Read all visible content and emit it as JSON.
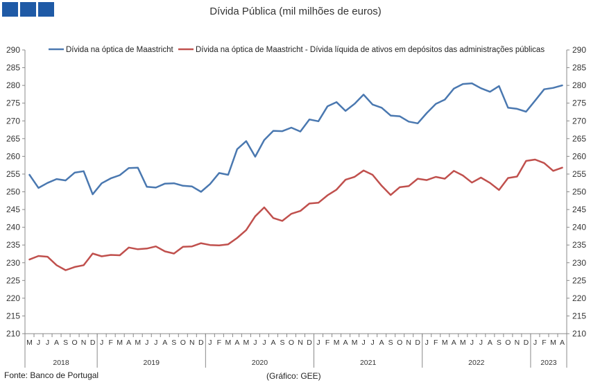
{
  "title": "Dívida Pública (mil milhões de euros)",
  "source": "Fonte: Banco de Portugal",
  "credit": "(Gráfico: GEE)",
  "chart_data": {
    "type": "line",
    "ylim": [
      210,
      290
    ],
    "yticks": [
      210,
      215,
      220,
      225,
      230,
      235,
      240,
      245,
      250,
      255,
      260,
      265,
      270,
      275,
      280,
      285,
      290
    ],
    "grid": false,
    "legend_position": "top",
    "month_labels": [
      "M",
      "J",
      "J",
      "A",
      "S",
      "O",
      "N",
      "D",
      "J",
      "F",
      "M",
      "A",
      "M",
      "J",
      "J",
      "A",
      "S",
      "O",
      "N",
      "D",
      "J",
      "F",
      "M",
      "A",
      "M",
      "J",
      "J",
      "A",
      "S",
      "O",
      "N",
      "D",
      "J",
      "F",
      "M",
      "A",
      "M",
      "J",
      "J",
      "A",
      "S",
      "O",
      "N",
      "D",
      "J",
      "F",
      "M",
      "A",
      "M",
      "J",
      "J",
      "A",
      "S",
      "O",
      "N",
      "D",
      "J",
      "F",
      "M",
      "A"
    ],
    "years": [
      {
        "label": "2018",
        "start": 0,
        "count": 8
      },
      {
        "label": "2019",
        "start": 8,
        "count": 12
      },
      {
        "label": "2020",
        "start": 20,
        "count": 12
      },
      {
        "label": "2021",
        "start": 32,
        "count": 12
      },
      {
        "label": "2022",
        "start": 44,
        "count": 12
      },
      {
        "label": "2023",
        "start": 56,
        "count": 4
      }
    ],
    "series": [
      {
        "name": "Dívida na óptica de Maastricht",
        "color": "#4a78b0",
        "values": [
          254.8,
          251.1,
          252.5,
          253.6,
          253.2,
          255.4,
          255.8,
          249.3,
          252.4,
          253.8,
          254.7,
          256.7,
          256.8,
          251.4,
          251.2,
          252.3,
          252.4,
          251.7,
          251.5,
          250.0,
          252.2,
          255.3,
          254.8,
          262.0,
          264.3,
          259.9,
          264.6,
          267.2,
          267.1,
          268.1,
          267.0,
          270.4,
          269.9,
          274.1,
          275.3,
          272.8,
          274.8,
          277.4,
          274.6,
          273.7,
          271.5,
          271.3,
          269.8,
          269.3,
          272.2,
          274.8,
          276.0,
          279.1,
          280.4,
          280.6,
          279.2,
          278.2,
          279.8,
          273.7,
          273.4,
          272.6,
          275.7,
          278.9,
          279.3,
          280.0
        ]
      },
      {
        "name": "Dívida na óptica de Maastricht - Dívida líquida de ativos em depósitos das administrações públicas",
        "color": "#c0504d",
        "values": [
          230.9,
          231.9,
          231.7,
          229.3,
          227.9,
          228.8,
          229.3,
          232.6,
          231.8,
          232.2,
          232.1,
          234.3,
          233.8,
          234.0,
          234.6,
          233.2,
          232.6,
          234.5,
          234.6,
          235.5,
          235.0,
          234.9,
          235.2,
          237.0,
          239.2,
          243.1,
          245.6,
          242.6,
          241.8,
          243.8,
          244.6,
          246.7,
          246.9,
          249.0,
          250.6,
          253.4,
          254.2,
          256.0,
          254.8,
          251.7,
          249.1,
          251.3,
          251.6,
          253.7,
          253.3,
          254.2,
          253.7,
          255.9,
          254.6,
          252.6,
          254.0,
          252.5,
          250.5,
          253.9,
          254.3,
          258.7,
          259.1,
          258.1,
          255.9,
          256.8
        ]
      }
    ]
  }
}
